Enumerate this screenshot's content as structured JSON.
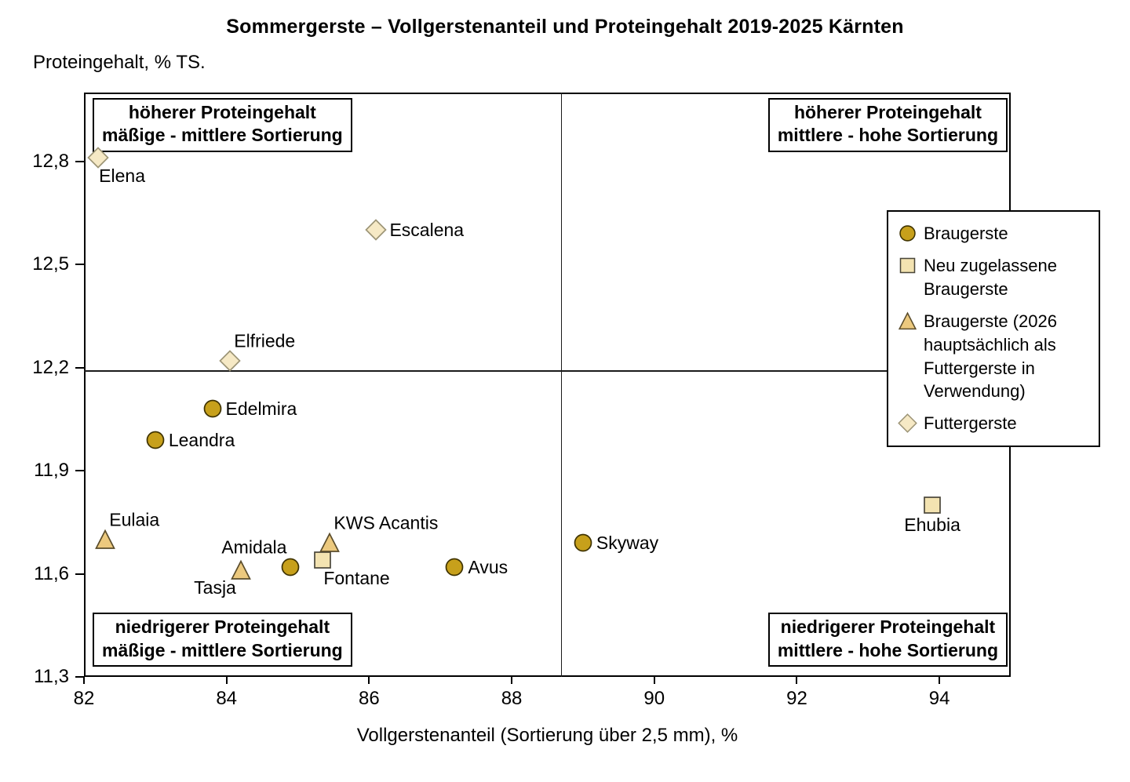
{
  "title": "Sommergerste – Vollgerstenanteil und Proteingehalt 2019-2025 Kärnten",
  "y_axis_label": "Proteingehalt, % TS.",
  "x_axis_label": "Vollgerstenanteil (Sortierung über 2,5 mm), %",
  "chart_data": {
    "type": "scatter",
    "title": "Sommergerste – Vollgerstenanteil und Proteingehalt 2019-2025 Kärnten",
    "xlabel": "Vollgerstenanteil (Sortierung über 2,5 mm), %",
    "ylabel": "Proteingehalt, % TS.",
    "xlim": [
      82,
      95
    ],
    "ylim": [
      11.3,
      13.0
    ],
    "grid": false,
    "legend_position": "right-inside",
    "xticks": [
      {
        "value": 82,
        "label": "82"
      },
      {
        "value": 84,
        "label": "84"
      },
      {
        "value": 86,
        "label": "86"
      },
      {
        "value": 88,
        "label": "88"
      },
      {
        "value": 90,
        "label": "90"
      },
      {
        "value": 92,
        "label": "92"
      },
      {
        "value": 94,
        "label": "94"
      }
    ],
    "yticks": [
      {
        "value": 11.3,
        "label": "11,3"
      },
      {
        "value": 11.6,
        "label": "11,6"
      },
      {
        "value": 11.9,
        "label": "11,9"
      },
      {
        "value": 12.2,
        "label": "12,2"
      },
      {
        "value": 12.5,
        "label": "12,5"
      },
      {
        "value": 12.8,
        "label": "12,8"
      }
    ],
    "dividers": {
      "x": 88.7,
      "y": 12.19
    },
    "quadrant_labels": [
      {
        "corner": "top-left",
        "line1": "höherer Proteingehalt",
        "line2": "mäßige - mittlere Sortierung"
      },
      {
        "corner": "top-right",
        "line1": "höherer Proteingehalt",
        "line2": "mittlere - hohe Sortierung"
      },
      {
        "corner": "bottom-left",
        "line1": "niedrigerer Proteingehalt",
        "line2": "mäßige - mittlere Sortierung"
      },
      {
        "corner": "bottom-right",
        "line1": "niedrigerer Proteingehalt",
        "line2": "mittlere - hohe Sortierung"
      }
    ],
    "series": [
      {
        "name": "Braugerste",
        "marker": "circle",
        "fill": "#C7A01B",
        "stroke": "#3E3200",
        "points": [
          {
            "label": "Edelmira",
            "x": 83.8,
            "y": 12.08,
            "lp": "right"
          },
          {
            "label": "Leandra",
            "x": 83.0,
            "y": 11.99,
            "lp": "right"
          },
          {
            "label": "Amidala",
            "x": 84.9,
            "y": 11.62,
            "lp": "above-left"
          },
          {
            "label": "Avus",
            "x": 87.2,
            "y": 11.62,
            "lp": "right"
          },
          {
            "label": "Skyway",
            "x": 89.0,
            "y": 11.69,
            "lp": "right"
          }
        ]
      },
      {
        "name": "Neu zugelassene Braugerste",
        "marker": "square",
        "fill": "#F3E3B1",
        "stroke": "#4A463A",
        "points": [
          {
            "label": "Fontane",
            "x": 85.35,
            "y": 11.64,
            "lp": "below-right"
          },
          {
            "label": "Ehubia",
            "x": 93.9,
            "y": 11.8,
            "lp": "below"
          }
        ]
      },
      {
        "name": "Braugerste (2026 hauptsächlich als Futtergerste in Verwendung)",
        "marker": "triangle",
        "fill": "#ECC97E",
        "stroke": "#5A4C2B",
        "points": [
          {
            "label": "Eulaia",
            "x": 82.3,
            "y": 11.7,
            "lp": "above-right"
          },
          {
            "label": "Tasja",
            "x": 84.2,
            "y": 11.61,
            "lp": "below-left"
          },
          {
            "label": "KWS Acantis",
            "x": 85.45,
            "y": 11.69,
            "lp": "above-right"
          }
        ]
      },
      {
        "name": "Futtergerste",
        "marker": "diamond",
        "fill": "#F6E9C5",
        "stroke": "#9D9577",
        "points": [
          {
            "label": "Elena",
            "x": 82.2,
            "y": 12.81,
            "lp": "below-right"
          },
          {
            "label": "Elfriede",
            "x": 84.05,
            "y": 12.22,
            "lp": "above-right"
          },
          {
            "label": "Escalena",
            "x": 86.1,
            "y": 12.6,
            "lp": "right"
          }
        ]
      }
    ]
  }
}
